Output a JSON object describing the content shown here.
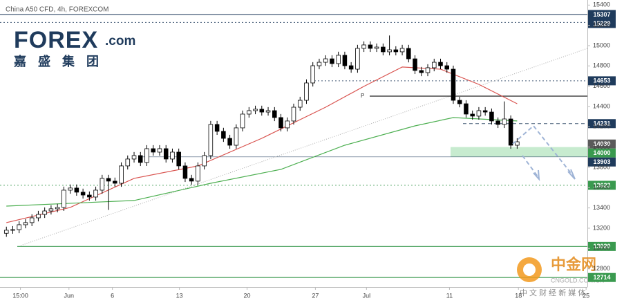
{
  "header": {
    "title": "China A50 CFD, 4h, FOREXCOM"
  },
  "logo": {
    "brand": "FOREX",
    "suffix": ".com",
    "chinese": "嘉 盛 集 团"
  },
  "watermark": {
    "brand": "中金网",
    "site": "CNGOLD.COM.CN",
    "tagline": "中 文 财 经 新 媒 体"
  },
  "chart_data": {
    "type": "candlestick",
    "up_color": "#ffffff",
    "down_color": "#000000",
    "outline_color": "#000000",
    "xlim": [
      -1,
      91
    ],
    "xticks": [
      {
        "value": 2.2,
        "label": "15:00"
      },
      {
        "value": 9.8,
        "label": "Jun"
      },
      {
        "value": 16.6,
        "label": "6"
      },
      {
        "value": 27.1,
        "label": "13"
      },
      {
        "value": 37.7,
        "label": "20"
      },
      {
        "value": 48.4,
        "label": "27"
      },
      {
        "value": 56.4,
        "label": "Jul"
      },
      {
        "value": 69.4,
        "label": "11"
      },
      {
        "value": 80.2,
        "label": "18"
      },
      {
        "value": 90.8,
        "label": "25"
      }
    ],
    "ylim": [
      12620,
      15450
    ],
    "yticks": [
      12800,
      13000,
      13200,
      13400,
      13600,
      13800,
      14000,
      14200,
      14400,
      14600,
      14800,
      15000,
      15200,
      15400
    ],
    "grid": false,
    "open": [
      13150,
      13180,
      13186,
      13234,
      13255,
      13302,
      13336,
      13370,
      13391,
      13405,
      13575,
      13596,
      13555,
      13527,
      13507,
      13575,
      13691,
      13664,
      13643,
      13814,
      13882,
      13916,
      13848,
      13984,
      13950,
      13984,
      13882,
      13950,
      13814,
      13691,
      13664,
      13814,
      13916,
      14223,
      14155,
      14086,
      14018,
      14189,
      14325,
      14359,
      14373,
      14345,
      14359,
      14291,
      14189,
      14257,
      14393,
      14461,
      14632,
      14802,
      14836,
      14870,
      14823,
      14905,
      14802,
      14768,
      14973,
      15007,
      14973,
      14986,
      14939,
      14959,
      14939,
      14973,
      14870,
      14755,
      14734,
      14782,
      14836,
      14802,
      14768,
      14461,
      14427,
      14325,
      14305,
      14359,
      14345,
      14257,
      14223,
      14277,
      14018
    ],
    "high": [
      13215,
      13221,
      13269,
      13290,
      13337,
      13371,
      13405,
      13426,
      13440,
      13610,
      13631,
      13631,
      13590,
      13562,
      13610,
      13726,
      13726,
      13699,
      13849,
      13917,
      13951,
      13951,
      14019,
      14019,
      14019,
      14019,
      13985,
      13985,
      13849,
      13726,
      13849,
      13951,
      14258,
      14258,
      14190,
      14121,
      14224,
      14360,
      14394,
      14408,
      14408,
      14394,
      14394,
      14326,
      14292,
      14428,
      14496,
      14667,
      14837,
      14871,
      14905,
      14905,
      14940,
      14940,
      14837,
      15008,
      15042,
      15042,
      15021,
      15021,
      15100,
      14994,
      15008,
      15008,
      14905,
      14790,
      14817,
      14871,
      14871,
      14837,
      14803,
      14496,
      14462,
      14360,
      14394,
      14394,
      14380,
      14292,
      14450,
      14312,
      14087
    ],
    "low": [
      13115,
      13145,
      13151,
      13199,
      13220,
      13267,
      13301,
      13335,
      13356,
      13370,
      13540,
      13520,
      13492,
      13472,
      13472,
      13540,
      13380,
      13608,
      13608,
      13779,
      13847,
      13813,
      13813,
      13915,
      13915,
      13847,
      13847,
      13779,
      13656,
      13629,
      13629,
      13779,
      13881,
      14120,
      14051,
      13983,
      13983,
      14154,
      14290,
      14324,
      14310,
      14310,
      14256,
      14154,
      14154,
      14222,
      14358,
      14426,
      14597,
      14767,
      14801,
      14788,
      14788,
      14767,
      14733,
      14733,
      14938,
      14938,
      14938,
      14904,
      14904,
      14904,
      14904,
      14835,
      14720,
      14699,
      14699,
      14747,
      14767,
      14733,
      14426,
      14392,
      14290,
      14270,
      14270,
      14310,
      14222,
      14188,
      14188,
      13983,
      13983
    ],
    "close": [
      13180,
      13186,
      13234,
      13255,
      13302,
      13336,
      13370,
      13391,
      13405,
      13575,
      13596,
      13555,
      13527,
      13507,
      13575,
      13691,
      13664,
      13643,
      13814,
      13882,
      13916,
      13848,
      13984,
      13950,
      13984,
      13882,
      13950,
      13814,
      13691,
      13664,
      13814,
      13916,
      14223,
      14155,
      14086,
      14018,
      14189,
      14325,
      14359,
      14373,
      14345,
      14359,
      14291,
      14189,
      14257,
      14393,
      14461,
      14632,
      14802,
      14836,
      14870,
      14823,
      14905,
      14802,
      14768,
      14973,
      15007,
      14973,
      14986,
      14939,
      14959,
      14939,
      14973,
      14870,
      14755,
      14734,
      14782,
      14836,
      14802,
      14768,
      14461,
      14427,
      14325,
      14305,
      14359,
      14345,
      14257,
      14223,
      14277,
      14018,
      14052
    ],
    "series": [
      {
        "color": "#d9534f",
        "x": [
          0,
          10,
          20,
          30,
          40,
          50,
          56,
          62,
          68,
          74,
          80
        ],
        "values": [
          13255,
          13405,
          13691,
          13814,
          14086,
          14393,
          14598,
          14789,
          14768,
          14618,
          14427
        ]
      },
      {
        "color": "#4caf50",
        "x": [
          0,
          20,
          32,
          43,
          53,
          64,
          70,
          80
        ],
        "values": [
          13418,
          13473,
          13643,
          13780,
          14018,
          14209,
          14291,
          14257
        ]
      }
    ],
    "zone": {
      "values": [
        13903,
        14000
      ],
      "color": "#b9e6c3"
    },
    "pivot": {
      "label": "P",
      "value": 14502
    },
    "levels": [
      {
        "value": 15307,
        "color": "#1f3b5c"
      },
      {
        "value": 15229,
        "color": "#1f3b5c"
      },
      {
        "value": 14653,
        "color": "#1f3b5c"
      },
      {
        "value": 14231,
        "color": "#1f3b5c"
      },
      {
        "value": 14030,
        "color": "#5a5a5a"
      },
      {
        "value": 14000,
        "color": "#3a9a4f"
      },
      {
        "value": 13903,
        "color": "#1f3b5c"
      },
      {
        "value": 13623,
        "color": "#3a9a4f"
      },
      {
        "value": 13020,
        "color": "#3a9a4f"
      },
      {
        "value": 12714,
        "color": "#3a9a4f"
      }
    ]
  }
}
